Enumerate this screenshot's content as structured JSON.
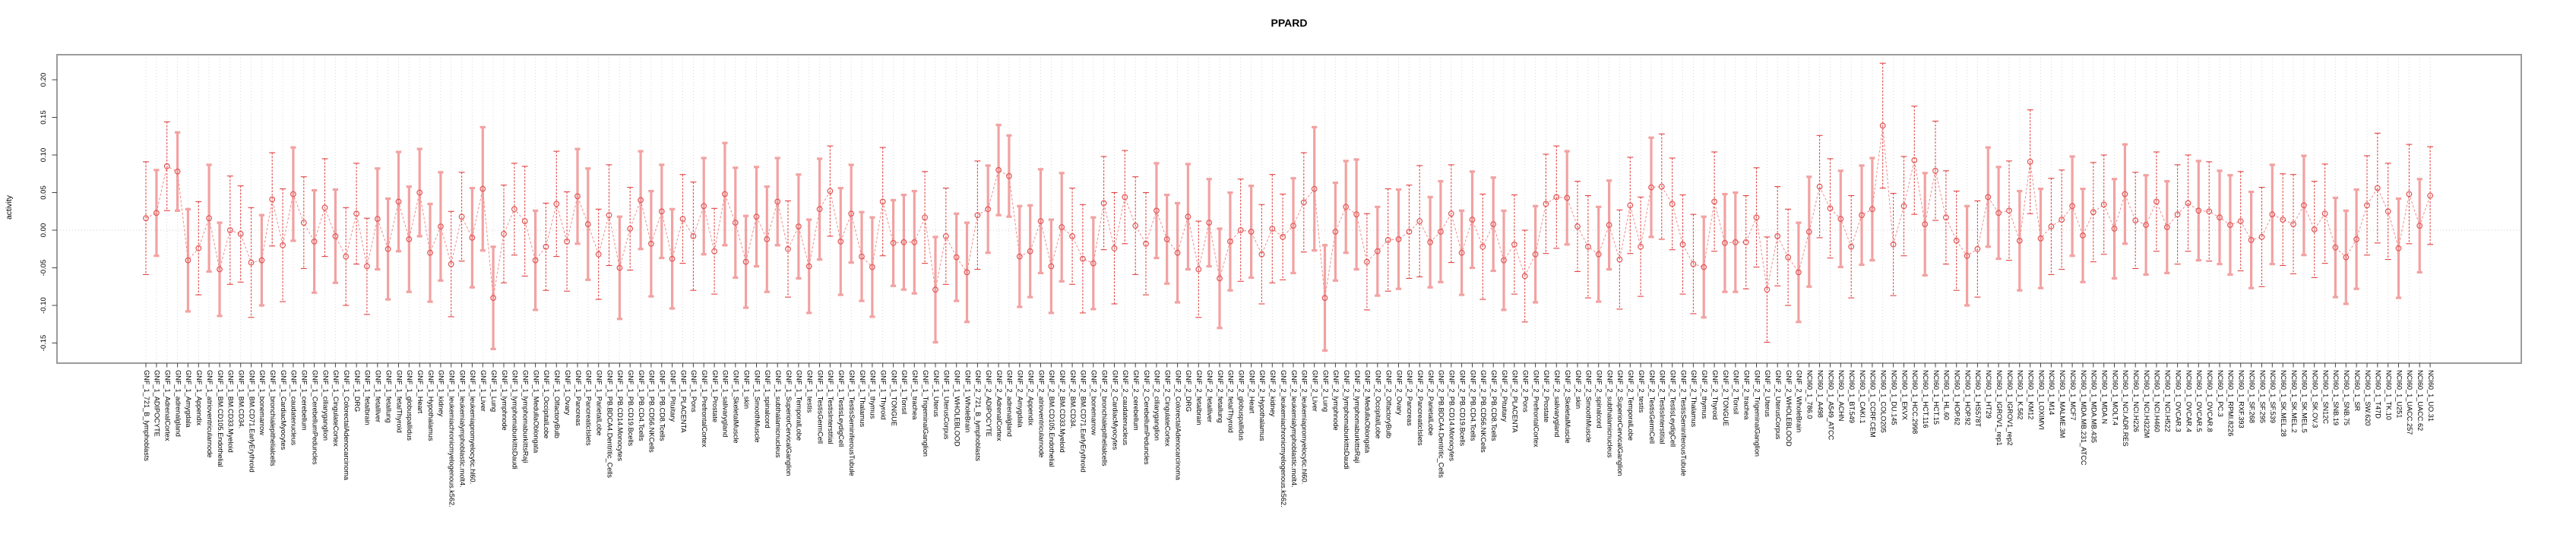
{
  "title": "PPARD",
  "y_axis": {
    "label": "activity",
    "ticks": [
      -0.15,
      -0.1,
      -0.05,
      0.0,
      0.05,
      0.1,
      0.15,
      0.2
    ],
    "tick_labels": [
      "-0.15",
      "-0.10",
      "-0.05",
      "0.00",
      "0.05",
      "0.10",
      "0.15",
      "0.20"
    ]
  },
  "colors": {
    "point_stroke": "#e25555",
    "line": "#f08a8a",
    "bar_thin": "#e34343",
    "bar_thick": "#f2a2a2",
    "grid": "#d9d9d9",
    "box": "#9b9b9b",
    "tick": "#444444",
    "title_text": "#000000"
  },
  "chart_data": {
    "type": "errorbar",
    "title": "PPARD",
    "xlabel": "",
    "ylabel": "activity",
    "ylim": [
      -0.18,
      0.235
    ],
    "grid": "vertical-dotted-per-category",
    "zero_line_dotted": true,
    "legend": "none",
    "group_prefixes": [
      "GNF_1_",
      "GNF_2_",
      "NCI60_1_"
    ],
    "gnf_tissues": [
      "721_B_lymphoblasts",
      "ADIPOCYTE",
      "AdrenalCortex",
      "adrenalgland",
      "Amygdala",
      "Appendix",
      "atrioventricularnode",
      "BM.CD105.Endothelial",
      "BM.CD33.Myeloid",
      "BM.CD34.",
      "BM.CD71.EarlyErythroid",
      "bonemarrow",
      "bronchialepithelialcells",
      "CardiacMyocytes",
      "caudatenucleus",
      "cerebellum",
      "CerebellumPeduncles",
      "ciliaryganglion",
      "CingulateCortex",
      "ColorectalAdenocarcinoma",
      "DRG",
      "fetalbrain",
      "fetalliver",
      "fetallung",
      "fetalThyroid",
      "globuspallidus",
      "Heart",
      "Hypothalamus",
      "kidney",
      "leukemiachronicmyelogenous.k562.",
      "leukemialymphoblastic.molt4.",
      "leukemiapromyelocytic.hl60.",
      "Liver",
      "Lung",
      "lymphnode",
      "lymphomaburkittsDaudi",
      "lymphomaburkittsRaji",
      "MedullaOblongata",
      "OccipitalLobe",
      "OlfactoryBulb",
      "Ovary",
      "Pancreas",
      "PancreaticIslets",
      "ParietalLobe",
      "PB.BDCA4.Dentritic_Cells",
      "PB.CD14.Monocytes",
      "PB.CD19.Bcells",
      "PB.CD4.Tcells",
      "PB.CD56.NKCells",
      "PB.CD8.Tcells",
      "Pituitary",
      "PLACENTA",
      "Pons",
      "PrefrontalCortex",
      "Prostate",
      "salivarygland",
      "SkeletalMuscle",
      "skin",
      "SmoothMuscle",
      "spinalcord",
      "subthalamicnucleus",
      "SuperiorCervicalGanglion",
      "TemporalLobe",
      "testis",
      "TestisGermCell",
      "TestisInterstitial",
      "TestisLeydigCell",
      "TestisSeminiferousTubule",
      "Thalamus",
      "thymus",
      "Thyroid",
      "TONGUE",
      "Tonsil",
      "trachea",
      "TrigeminalGanglion",
      "Uterus",
      "UterusCorpus",
      "WHOLEBLOOD",
      "WholeBrain"
    ],
    "nci60_cell_lines": [
      "786.0",
      "A498",
      "A549_ATCC",
      "ACHN",
      "BT.549",
      "CAKI.1",
      "CCRF.CEM",
      "COLO205",
      "DU.145",
      "EKVX",
      "HCC.2998",
      "HCT.116",
      "HCT.15",
      "HL.60",
      "HOP.62",
      "HOP.92",
      "HS578T",
      "HT29",
      "IGROV1_rep1",
      "IGROV1_rep2",
      "K.562",
      "KM12",
      "LOXIMVI",
      "M14",
      "MALME.3M",
      "MCF7",
      "MDA.MB.231_ATCC",
      "MDA.MB.435",
      "MDA.N",
      "MOLT.4",
      "NCI.ADR.RES",
      "NCI.H226",
      "NCI.H322M",
      "NCI.H460",
      "NCI.H522",
      "OVCAR.3",
      "OVCAR.4",
      "OVCAR.5",
      "OVCAR.8",
      "PC.3",
      "RPMI.8226",
      "RXF.393",
      "SF.268",
      "SF.295",
      "SF.539",
      "SK.MEL.28",
      "SK.MEL.2",
      "SK.MEL.5",
      "SK.OV.3",
      "SN12C",
      "SNB.19",
      "SNB.75",
      "SR",
      "SW.620",
      "T47D",
      "TK.10",
      "U251",
      "UACC.257",
      "UACC.62",
      "UO.31"
    ],
    "values": [
      0.016,
      0.023,
      0.085,
      0.078,
      -0.04,
      -0.024,
      0.016,
      -0.052,
      0.0,
      -0.005,
      -0.043,
      -0.04,
      0.041,
      -0.02,
      0.048,
      0.01,
      -0.015,
      0.03,
      -0.008,
      -0.035,
      0.022,
      -0.048,
      0.015,
      -0.025,
      0.038,
      -0.012,
      0.05,
      -0.03,
      0.005,
      -0.045,
      0.018,
      -0.01,
      0.055,
      -0.09,
      -0.005,
      0.028,
      0.012,
      -0.04,
      -0.022,
      0.035,
      -0.015,
      0.045,
      0.008,
      -0.032,
      0.02,
      -0.05,
      0.002,
      0.04,
      -0.018,
      0.025,
      -0.038,
      0.015,
      -0.008,
      0.032,
      -0.028,
      0.048,
      0.01,
      -0.042,
      0.018,
      -0.012,
      0.038,
      -0.025,
      0.005,
      -0.048,
      0.028,
      0.052,
      -0.015,
      0.022,
      -0.035,
      -0.049,
      0.038,
      -0.017,
      -0.016,
      -0.016,
      0.017,
      -0.079,
      -0.008,
      -0.036,
      -0.056,
      0.02,
      0.028,
      0.08,
      0.072,
      -0.035,
      -0.028,
      0.012,
      -0.048,
      0.004,
      -0.008,
      -0.038,
      -0.044,
      0.036,
      -0.024,
      0.044,
      0.006,
      -0.018,
      0.026,
      -0.012,
      -0.03,
      0.018,
      -0.052,
      0.01,
      -0.064,
      -0.015,
      0.0,
      -0.002,
      -0.032,
      0.002,
      -0.009,
      0.006,
      0.037,
      0.055,
      -0.09,
      -0.002,
      0.031,
      0.021,
      -0.042,
      -0.028,
      -0.013,
      -0.012,
      -0.002,
      0.012,
      -0.016,
      -0.002,
      0.022,
      -0.03,
      0.014,
      -0.022,
      0.008,
      -0.04,
      -0.019,
      -0.061,
      -0.032,
      0.035,
      0.044,
      0.043,
      0.005,
      -0.022,
      -0.032,
      0.007,
      -0.039,
      0.033,
      -0.022,
      0.057,
      0.058,
      0.035,
      -0.019,
      -0.045,
      -0.049,
      0.038,
      -0.017,
      -0.016,
      -0.016,
      0.017,
      -0.079,
      -0.008,
      -0.036,
      -0.056,
      -0.002,
      0.058,
      0.029,
      0.015,
      -0.022,
      0.02,
      0.028,
      0.139,
      -0.019,
      0.032,
      0.093,
      0.008,
      0.079,
      0.017,
      -0.014,
      -0.034,
      -0.025,
      0.044,
      0.023,
      0.026,
      -0.014,
      0.091,
      -0.011,
      0.005,
      0.014,
      0.032,
      -0.007,
      0.024,
      0.034,
      0.002,
      0.048,
      0.013,
      0.007,
      0.038,
      0.004,
      0.021,
      0.036,
      0.026,
      0.025,
      0.017,
      0.007,
      0.012,
      -0.013,
      -0.009,
      0.021,
      0.014,
      0.008,
      0.033,
      0.001,
      0.022,
      -0.023,
      -0.036,
      -0.012,
      0.033,
      0.056,
      0.025,
      -0.024,
      0.048,
      0.006,
      0.046
    ],
    "ci_half": [
      0.075,
      0.057,
      0.059,
      0.052,
      0.068,
      0.062,
      0.071,
      0.062,
      0.072,
      0.064,
      0.073,
      0.06,
      0.062,
      0.075,
      0.062,
      0.061,
      0.068,
      0.065,
      0.062,
      0.065,
      0.067,
      0.064,
      0.067,
      0.067,
      0.066,
      0.07,
      0.058,
      0.065,
      0.072,
      0.07,
      0.059,
      0.066,
      0.082,
      0.068,
      0.065,
      0.061,
      0.073,
      0.066,
      0.058,
      0.07,
      0.066,
      0.063,
      0.074,
      0.06,
      0.067,
      0.068,
      0.055,
      0.065,
      0.07,
      0.062,
      0.066,
      0.059,
      0.072,
      0.064,
      0.057,
      0.068,
      0.073,
      0.061,
      0.066,
      0.07,
      0.058,
      0.064,
      0.069,
      0.062,
      0.067,
      0.06,
      0.071,
      0.065,
      0.059,
      0.066,
      0.072,
      0.057,
      0.063,
      0.068,
      0.061,
      0.07,
      0.064,
      0.058,
      0.066,
      0.072,
      0.058,
      0.06,
      0.054,
      0.067,
      0.061,
      0.069,
      0.062,
      0.072,
      0.064,
      0.072,
      0.061,
      0.062,
      0.074,
      0.062,
      0.065,
      0.068,
      0.063,
      0.059,
      0.066,
      0.07,
      0.064,
      0.058,
      0.066,
      0.065,
      0.068,
      0.061,
      0.066,
      0.072,
      0.057,
      0.063,
      0.066,
      0.082,
      0.07,
      0.065,
      0.061,
      0.073,
      0.064,
      0.059,
      0.068,
      0.066,
      0.062,
      0.074,
      0.06,
      0.067,
      0.065,
      0.056,
      0.064,
      0.07,
      0.062,
      0.066,
      0.066,
      0.061,
      0.064,
      0.066,
      0.068,
      0.062,
      0.06,
      0.068,
      0.063,
      0.059,
      0.066,
      0.064,
      0.066,
      0.066,
      0.07,
      0.061,
      0.066,
      0.066,
      0.067,
      0.066,
      0.065,
      0.066,
      0.062,
      0.066,
      0.07,
      0.066,
      0.064,
      0.066,
      0.073,
      0.068,
      0.066,
      0.064,
      0.068,
      0.066,
      0.068,
      0.083,
      0.068,
      0.066,
      0.072,
      0.068,
      0.066,
      0.062,
      0.066,
      0.066,
      0.064,
      0.066,
      0.061,
      0.066,
      0.066,
      0.069,
      0.066,
      0.064,
      0.066,
      0.066,
      0.062,
      0.066,
      0.066,
      0.066,
      0.066,
      0.064,
      0.066,
      0.066,
      0.061,
      0.066,
      0.064,
      0.066,
      0.066,
      0.062,
      0.066,
      0.066,
      0.064,
      0.066,
      0.066,
      0.061,
      0.066,
      0.066,
      0.064,
      0.066,
      0.066,
      0.062,
      0.066,
      0.066,
      0.073,
      0.064,
      0.066,
      0.066,
      0.062,
      0.065
    ]
  }
}
